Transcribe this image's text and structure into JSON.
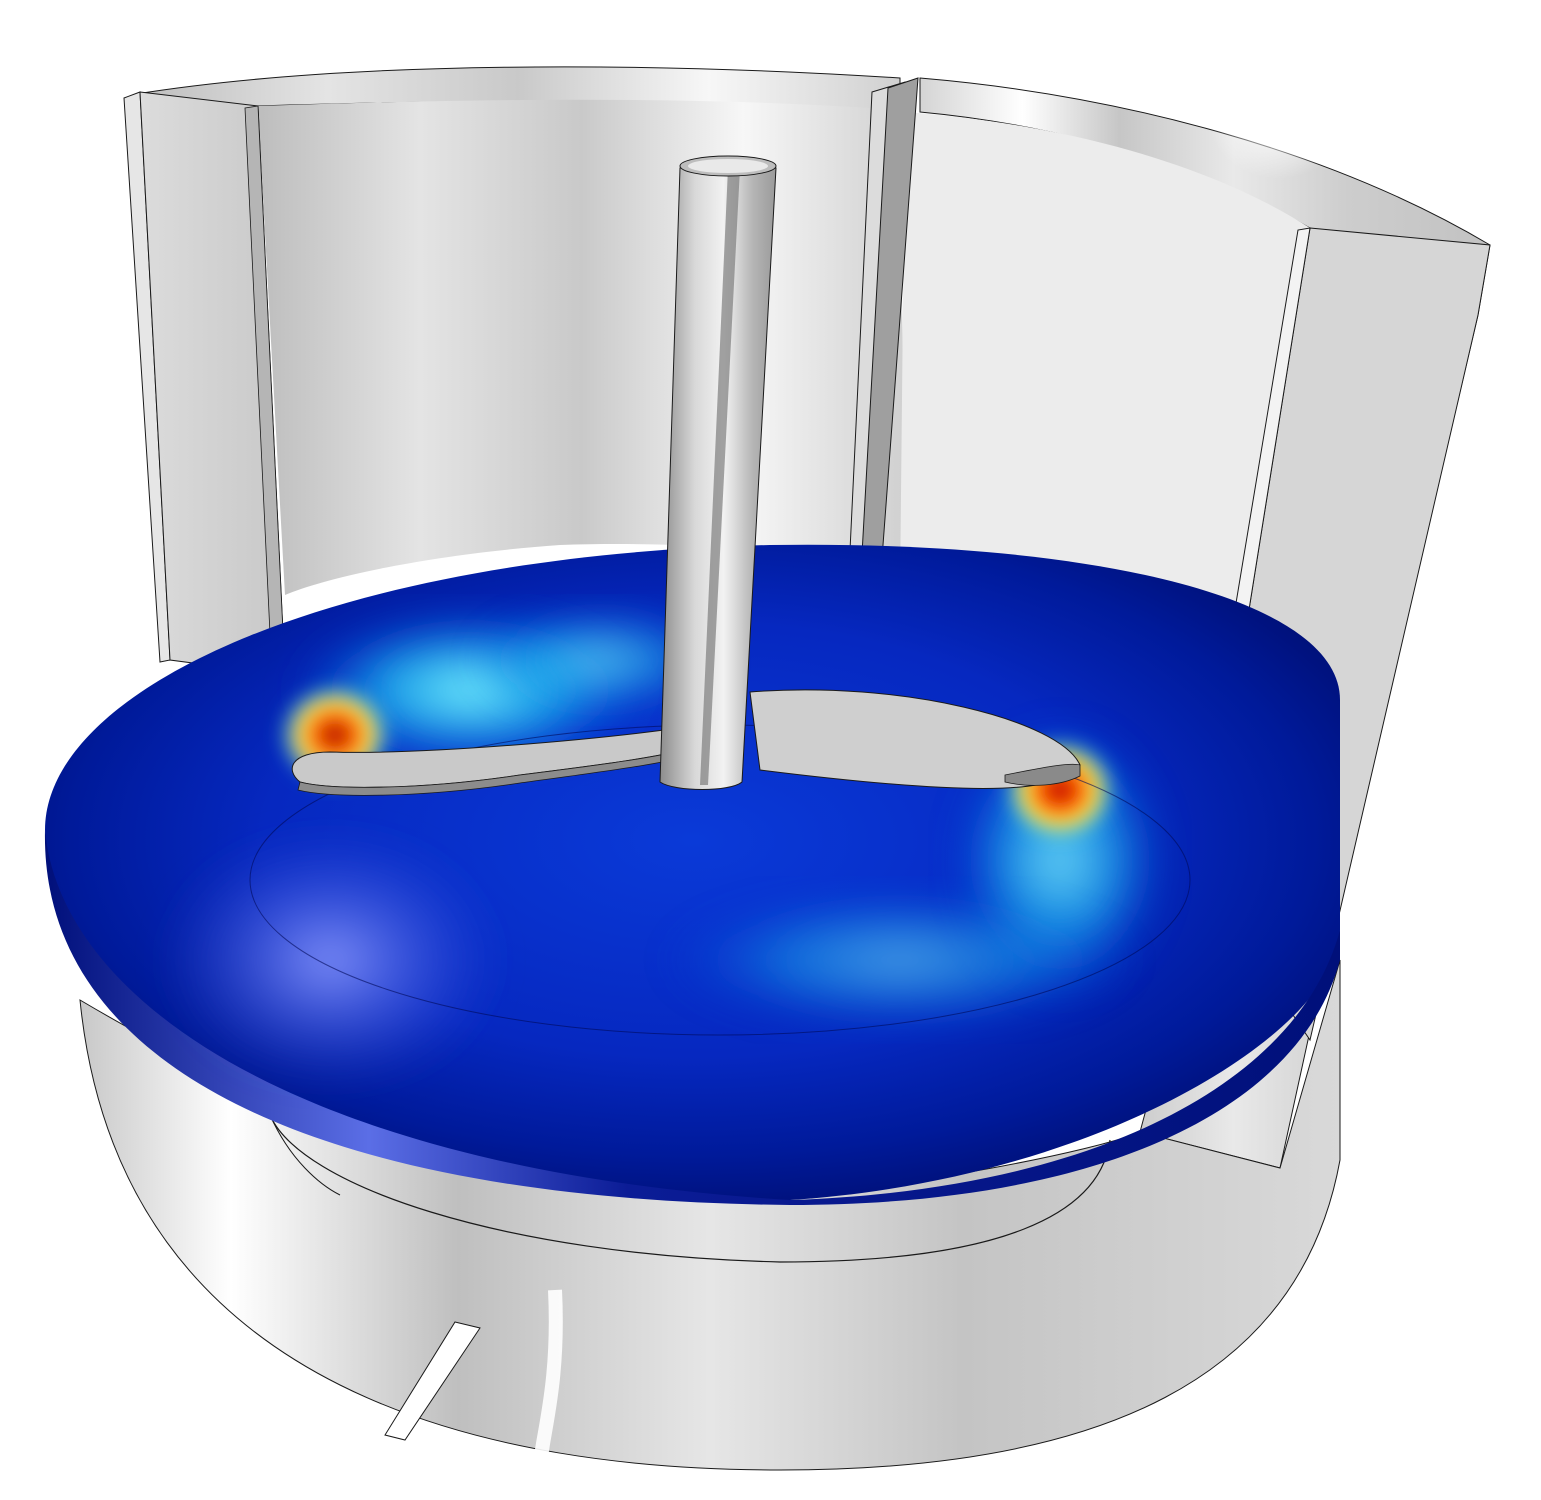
{
  "scene": {
    "description_visible_text": "",
    "colors": {
      "background": "#ffffff",
      "vessel_light": "#f2f2f2",
      "vessel_mid": "#cfcfcf",
      "vessel_dark": "#9a9a9a",
      "edge_line": "#1a1a1a",
      "field_low": "#00107a",
      "field_mid_low": "#0a2fd8",
      "field_mid": "#00c8ff",
      "field_mid_high": "#f6e33a",
      "field_high": "#b80000"
    }
  }
}
